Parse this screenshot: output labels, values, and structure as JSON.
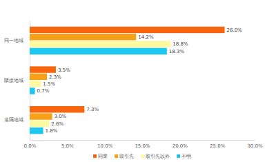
{
  "chart_data": {
    "type": "bar",
    "orientation": "horizontal",
    "categories": [
      "同一地域",
      "隣接地域",
      "遠隔地域"
    ],
    "series": [
      {
        "name": "同業",
        "color": "#f7650f",
        "values": [
          26.0,
          3.5,
          7.3
        ],
        "value_labels": [
          "26.0%",
          "3.5%",
          "7.3%"
        ]
      },
      {
        "name": "取引先",
        "color": "#f5a11c",
        "values": [
          14.2,
          2.3,
          3.0
        ],
        "value_labels": [
          "14.2%",
          "2.3%",
          "3.0%"
        ]
      },
      {
        "name": "取引先以外",
        "color": "#fdf9a0",
        "values": [
          18.8,
          1.5,
          2.6
        ],
        "value_labels": [
          "18.8%",
          "1.5%",
          "2.6%"
        ]
      },
      {
        "name": "不明",
        "color": "#1ec6f2",
        "values": [
          18.3,
          0.7,
          1.8
        ],
        "value_labels": [
          "18.3%",
          "0.7%",
          "1.8%"
        ]
      }
    ],
    "xlim": [
      0,
      30
    ],
    "xticks": [
      {
        "value": 0,
        "label": "0.0%"
      },
      {
        "value": 5,
        "label": "5.0%"
      },
      {
        "value": 10,
        "label": "10.0%"
      },
      {
        "value": 15,
        "label": "15.0%"
      },
      {
        "value": 20,
        "label": "20.0%"
      },
      {
        "value": 25,
        "label": "25.0%"
      },
      {
        "value": 30,
        "label": "30.0%"
      }
    ],
    "grid": false,
    "legend": "bottom",
    "data_labels": true
  }
}
